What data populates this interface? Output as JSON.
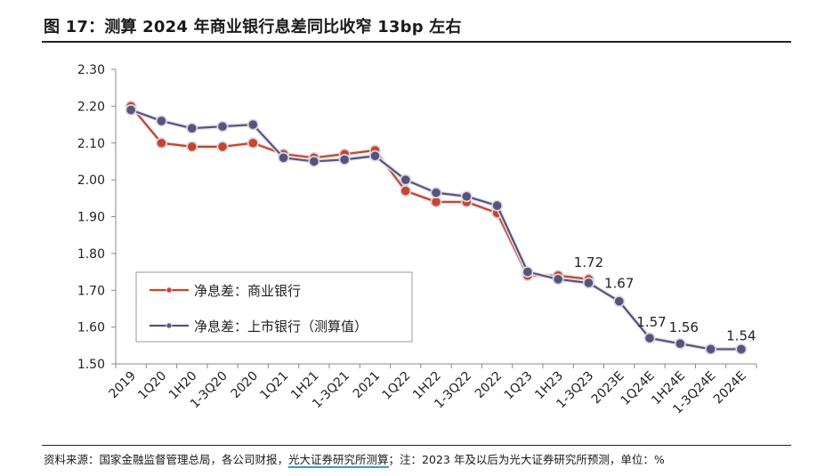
{
  "header": {
    "title": "图 17：测算 2024 年商业银行息差同比收窄 13bp 左右"
  },
  "footer": {
    "source_prefix": "资料来源：国家金融监督管理总局，各公司财报，",
    "source_highlight": "光大证券研究所测算",
    "source_suffix": "；注：2023 年及以后为光大证券研究所预测，单位：%"
  },
  "chart_data": {
    "type": "line",
    "categories": [
      "2019",
      "1Q20",
      "1H20",
      "1-3Q20",
      "2020",
      "1Q21",
      "1H21",
      "1-3Q21",
      "2021",
      "1Q22",
      "1H22",
      "1-3Q22",
      "2022",
      "1Q23",
      "1H23",
      "1-3Q23",
      "2023E",
      "1Q24E",
      "1H24E",
      "1-3Q24E",
      "2024E"
    ],
    "ylim": [
      1.5,
      2.3
    ],
    "yticks": [
      "1.50",
      "1.60",
      "1.70",
      "1.80",
      "1.90",
      "2.00",
      "2.10",
      "2.20",
      "2.30"
    ],
    "legend_position": "bottom-left",
    "colors": {
      "commercial": "#c8442a",
      "listed": "#57537a",
      "marker_ring": "#d9d8e6"
    },
    "series": [
      {
        "name": "净息差：商业银行",
        "values": [
          2.2,
          2.1,
          2.09,
          2.09,
          2.1,
          2.07,
          2.06,
          2.07,
          2.08,
          1.97,
          1.94,
          1.94,
          1.91,
          1.74,
          1.74,
          1.73,
          null,
          null,
          null,
          null,
          null
        ]
      },
      {
        "name": "净息差：上市银行（测算值）",
        "values": [
          2.19,
          2.16,
          2.14,
          2.145,
          2.15,
          2.06,
          2.05,
          2.055,
          2.065,
          2.0,
          1.965,
          1.955,
          1.93,
          1.75,
          1.73,
          1.72,
          1.67,
          1.57,
          1.555,
          1.54,
          1.54
        ]
      }
    ],
    "data_labels": [
      {
        "index": 15,
        "text": "1.72"
      },
      {
        "index": 16,
        "text": "1.67"
      },
      {
        "index": 17,
        "text": "1.57"
      },
      {
        "index": 18,
        "text": "1.56"
      },
      {
        "index": 20,
        "text": "1.54"
      }
    ]
  }
}
